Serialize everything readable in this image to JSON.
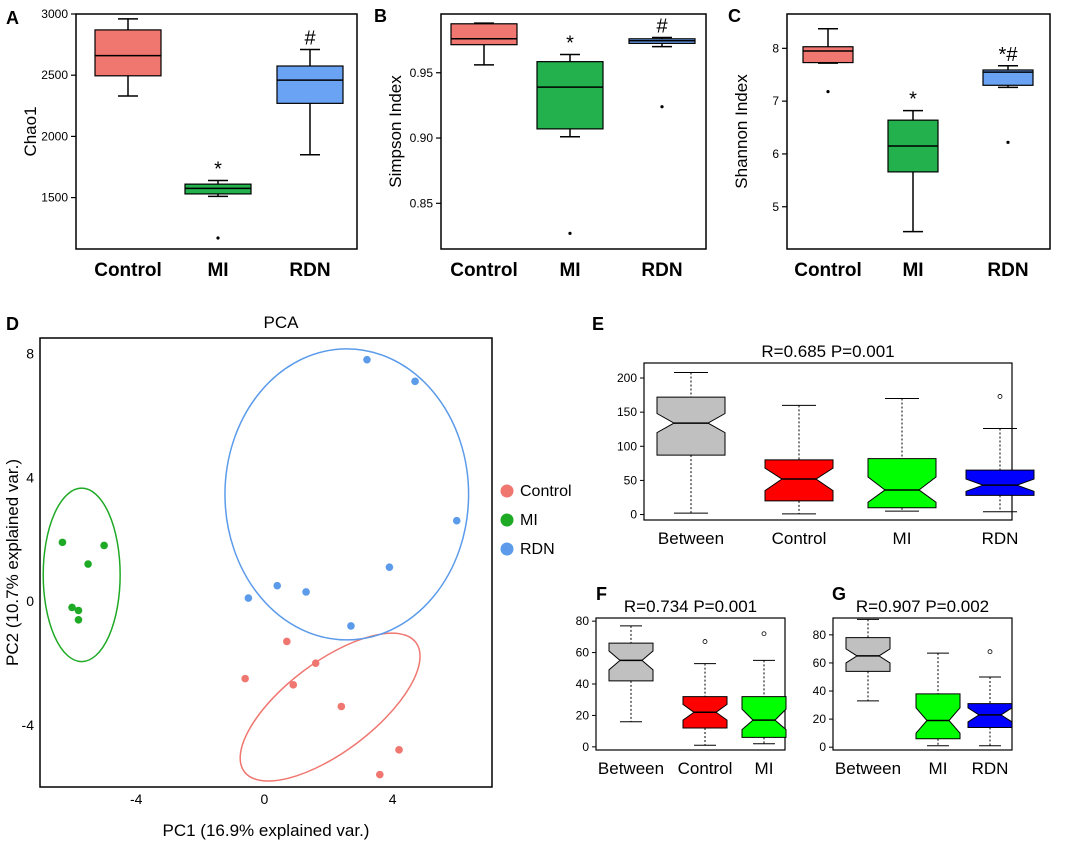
{
  "chart_data": [
    {
      "id": "A",
      "type": "box",
      "ylabel": "Chao1",
      "ylim": [
        1080,
        3000
      ],
      "yticks": [
        1500,
        2000,
        2500,
        3000
      ],
      "categories": [
        "Control",
        "MI",
        "RDN"
      ],
      "colors": [
        "#f07670",
        "#22b14c",
        "#6aa2f4"
      ],
      "boxes": [
        {
          "whislo": 2330,
          "q1": 2495,
          "med": 2660,
          "q3": 2870,
          "whishi": 2960,
          "outliers": [],
          "sig": ""
        },
        {
          "whislo": 1510,
          "q1": 1530,
          "med": 1575,
          "q3": 1610,
          "whishi": 1640,
          "outliers": [
            1170
          ],
          "sig": "*"
        },
        {
          "whislo": 1850,
          "q1": 2270,
          "med": 2460,
          "q3": 2575,
          "whishi": 2710,
          "outliers": [],
          "sig": "#"
        }
      ]
    },
    {
      "id": "B",
      "type": "box",
      "ylabel": "Simpson Index",
      "ylim": [
        0.815,
        0.995
      ],
      "yticks": [
        0.85,
        0.9,
        0.95
      ],
      "ytick_labels": [
        "0.85",
        "0.90",
        "0.95"
      ],
      "categories": [
        "Control",
        "MI",
        "RDN"
      ],
      "colors": [
        "#f07670",
        "#22b14c",
        "#6aa2f4"
      ],
      "boxes": [
        {
          "whislo": 0.956,
          "q1": 0.9715,
          "med": 0.976,
          "q3": 0.9875,
          "whishi": 0.988,
          "outliers": [],
          "sig": ""
        },
        {
          "whislo": 0.901,
          "q1": 0.907,
          "med": 0.939,
          "q3": 0.9585,
          "whishi": 0.964,
          "outliers": [
            0.827
          ],
          "sig": "*"
        },
        {
          "whislo": 0.97,
          "q1": 0.9725,
          "med": 0.9745,
          "q3": 0.976,
          "whishi": 0.977,
          "outliers": [
            0.924
          ],
          "sig": "#"
        }
      ]
    },
    {
      "id": "C",
      "type": "box",
      "ylabel": "Shannon Index",
      "ylim": [
        4.2,
        8.65
      ],
      "yticks": [
        5,
        6,
        7,
        8
      ],
      "categories": [
        "Control",
        "MI",
        "RDN"
      ],
      "colors": [
        "#f07670",
        "#22b14c",
        "#6aa2f4"
      ],
      "boxes": [
        {
          "whislo": 7.72,
          "q1": 7.73,
          "med": 7.95,
          "q3": 8.03,
          "whishi": 8.37,
          "outliers": [
            7.18
          ],
          "sig": ""
        },
        {
          "whislo": 4.53,
          "q1": 5.66,
          "med": 6.15,
          "q3": 6.64,
          "whishi": 6.82,
          "outliers": [],
          "sig": "*"
        },
        {
          "whislo": 7.26,
          "q1": 7.3,
          "med": 7.55,
          "q3": 7.59,
          "whishi": 7.67,
          "outliers": [
            6.22
          ],
          "sig": "*#"
        }
      ]
    },
    {
      "id": "D",
      "type": "scatter",
      "title": "PCA",
      "xlabel": "PC1 (16.9% explained var.)",
      "ylabel": "PC2 (10.7% explained var.)",
      "xlim": [
        -7.0,
        7.1
      ],
      "ylim": [
        -6.0,
        8.5
      ],
      "xticks": [
        -4,
        0,
        4
      ],
      "yticks": [
        -4,
        0,
        4,
        8
      ],
      "legend": [
        {
          "name": "Control",
          "color": "#f07670"
        },
        {
          "name": "MI",
          "color": "#1faa26"
        },
        {
          "name": "RDN",
          "color": "#5b9bea"
        }
      ],
      "series": [
        {
          "name": "Control",
          "color": "#f07670",
          "points": [
            [
              -0.6,
              -2.5
            ],
            [
              0.7,
              -1.3
            ],
            [
              0.9,
              -2.7
            ],
            [
              1.6,
              -2.0
            ],
            [
              2.4,
              -3.4
            ],
            [
              4.2,
              -4.8
            ],
            [
              3.6,
              -5.6
            ]
          ],
          "ellipse": {
            "cx": 2.05,
            "cy": -3.42,
            "rx": 3.35,
            "ry": 1.45,
            "angle_deg": 37
          }
        },
        {
          "name": "MI",
          "color": "#1faa26",
          "points": [
            [
              -6.3,
              1.9
            ],
            [
              -5.0,
              1.8
            ],
            [
              -5.5,
              1.2
            ],
            [
              -6.0,
              -0.2
            ],
            [
              -5.8,
              -0.3
            ],
            [
              -5.8,
              -0.6
            ]
          ],
          "ellipse": {
            "cx": -5.7,
            "cy": 0.85,
            "rx": 1.2,
            "ry": 2.8,
            "angle_deg": 0
          }
        },
        {
          "name": "RDN",
          "color": "#5b9bea",
          "points": [
            [
              3.2,
              7.8
            ],
            [
              4.7,
              7.1
            ],
            [
              6.0,
              2.6
            ],
            [
              3.9,
              1.1
            ],
            [
              0.4,
              0.5
            ],
            [
              1.3,
              0.3
            ],
            [
              -0.5,
              0.1
            ],
            [
              2.7,
              -0.8
            ]
          ],
          "ellipse": {
            "cx": 2.57,
            "cy": 3.45,
            "rx": 3.8,
            "ry": 4.7,
            "angle_deg": 0
          }
        }
      ]
    },
    {
      "id": "E",
      "type": "box",
      "title": "R=0.685  P=0.001",
      "ylim": [
        -8,
        222
      ],
      "yticks": [
        0,
        50,
        100,
        150,
        200
      ],
      "categories": [
        "Between",
        "Control",
        "MI",
        "RDN"
      ],
      "colors": [
        "#c0c0c0",
        "#ff0000",
        "#00ff00",
        "#0000ff"
      ],
      "boxes": [
        {
          "whislo": 2,
          "q1": 87,
          "med": 134,
          "q3": 172,
          "whishi": 208,
          "notch": [
            120,
            148
          ],
          "outliers": []
        },
        {
          "whislo": 1,
          "q1": 20,
          "med": 52,
          "q3": 80,
          "whishi": 160,
          "notch": [
            35,
            68
          ],
          "outliers": []
        },
        {
          "whislo": 5,
          "q1": 10,
          "med": 36,
          "q3": 82,
          "whishi": 170,
          "notch": [
            18,
            55
          ],
          "outliers": []
        },
        {
          "whislo": 4,
          "q1": 28,
          "med": 43,
          "q3": 65,
          "whishi": 126,
          "notch": [
            34,
            52
          ],
          "outliers": [
            173
          ]
        }
      ]
    },
    {
      "id": "F",
      "type": "box",
      "title": "R=0.734  P=0.001",
      "ylim": [
        -2,
        82
      ],
      "yticks": [
        0,
        20,
        40,
        60,
        80
      ],
      "categories": [
        "Between",
        "Control",
        "MI"
      ],
      "colors": [
        "#c0c0c0",
        "#ff0000",
        "#00ff00"
      ],
      "boxes": [
        {
          "whislo": 16,
          "q1": 42,
          "med": 55,
          "q3": 66,
          "whishi": 77,
          "notch": [
            49,
            61
          ],
          "outliers": []
        },
        {
          "whislo": 1,
          "q1": 12,
          "med": 22,
          "q3": 32,
          "whishi": 53,
          "notch": [
            17,
            27
          ],
          "outliers": [
            67
          ]
        },
        {
          "whislo": 2,
          "q1": 6,
          "med": 17,
          "q3": 32,
          "whishi": 55,
          "notch": [
            11,
            24
          ],
          "outliers": [
            72
          ]
        }
      ]
    },
    {
      "id": "G",
      "type": "box",
      "title": "R=0.907  P=0.002",
      "ylim": [
        -2,
        92
      ],
      "yticks": [
        0,
        20,
        40,
        60,
        80
      ],
      "categories": [
        "Between",
        "MI",
        "RDN"
      ],
      "colors": [
        "#c0c0c0",
        "#00ff00",
        "#0000ff"
      ],
      "boxes": [
        {
          "whislo": 33,
          "q1": 54,
          "med": 65,
          "q3": 78,
          "whishi": 91,
          "notch": [
            60,
            70
          ],
          "outliers": []
        },
        {
          "whislo": 1,
          "q1": 6,
          "med": 19,
          "q3": 38,
          "whishi": 67,
          "notch": [
            10,
            28
          ],
          "outliers": []
        },
        {
          "whislo": 1,
          "q1": 14,
          "med": 23,
          "q3": 31,
          "whishi": 50,
          "notch": [
            18,
            28
          ],
          "outliers": [
            68
          ]
        }
      ]
    }
  ]
}
